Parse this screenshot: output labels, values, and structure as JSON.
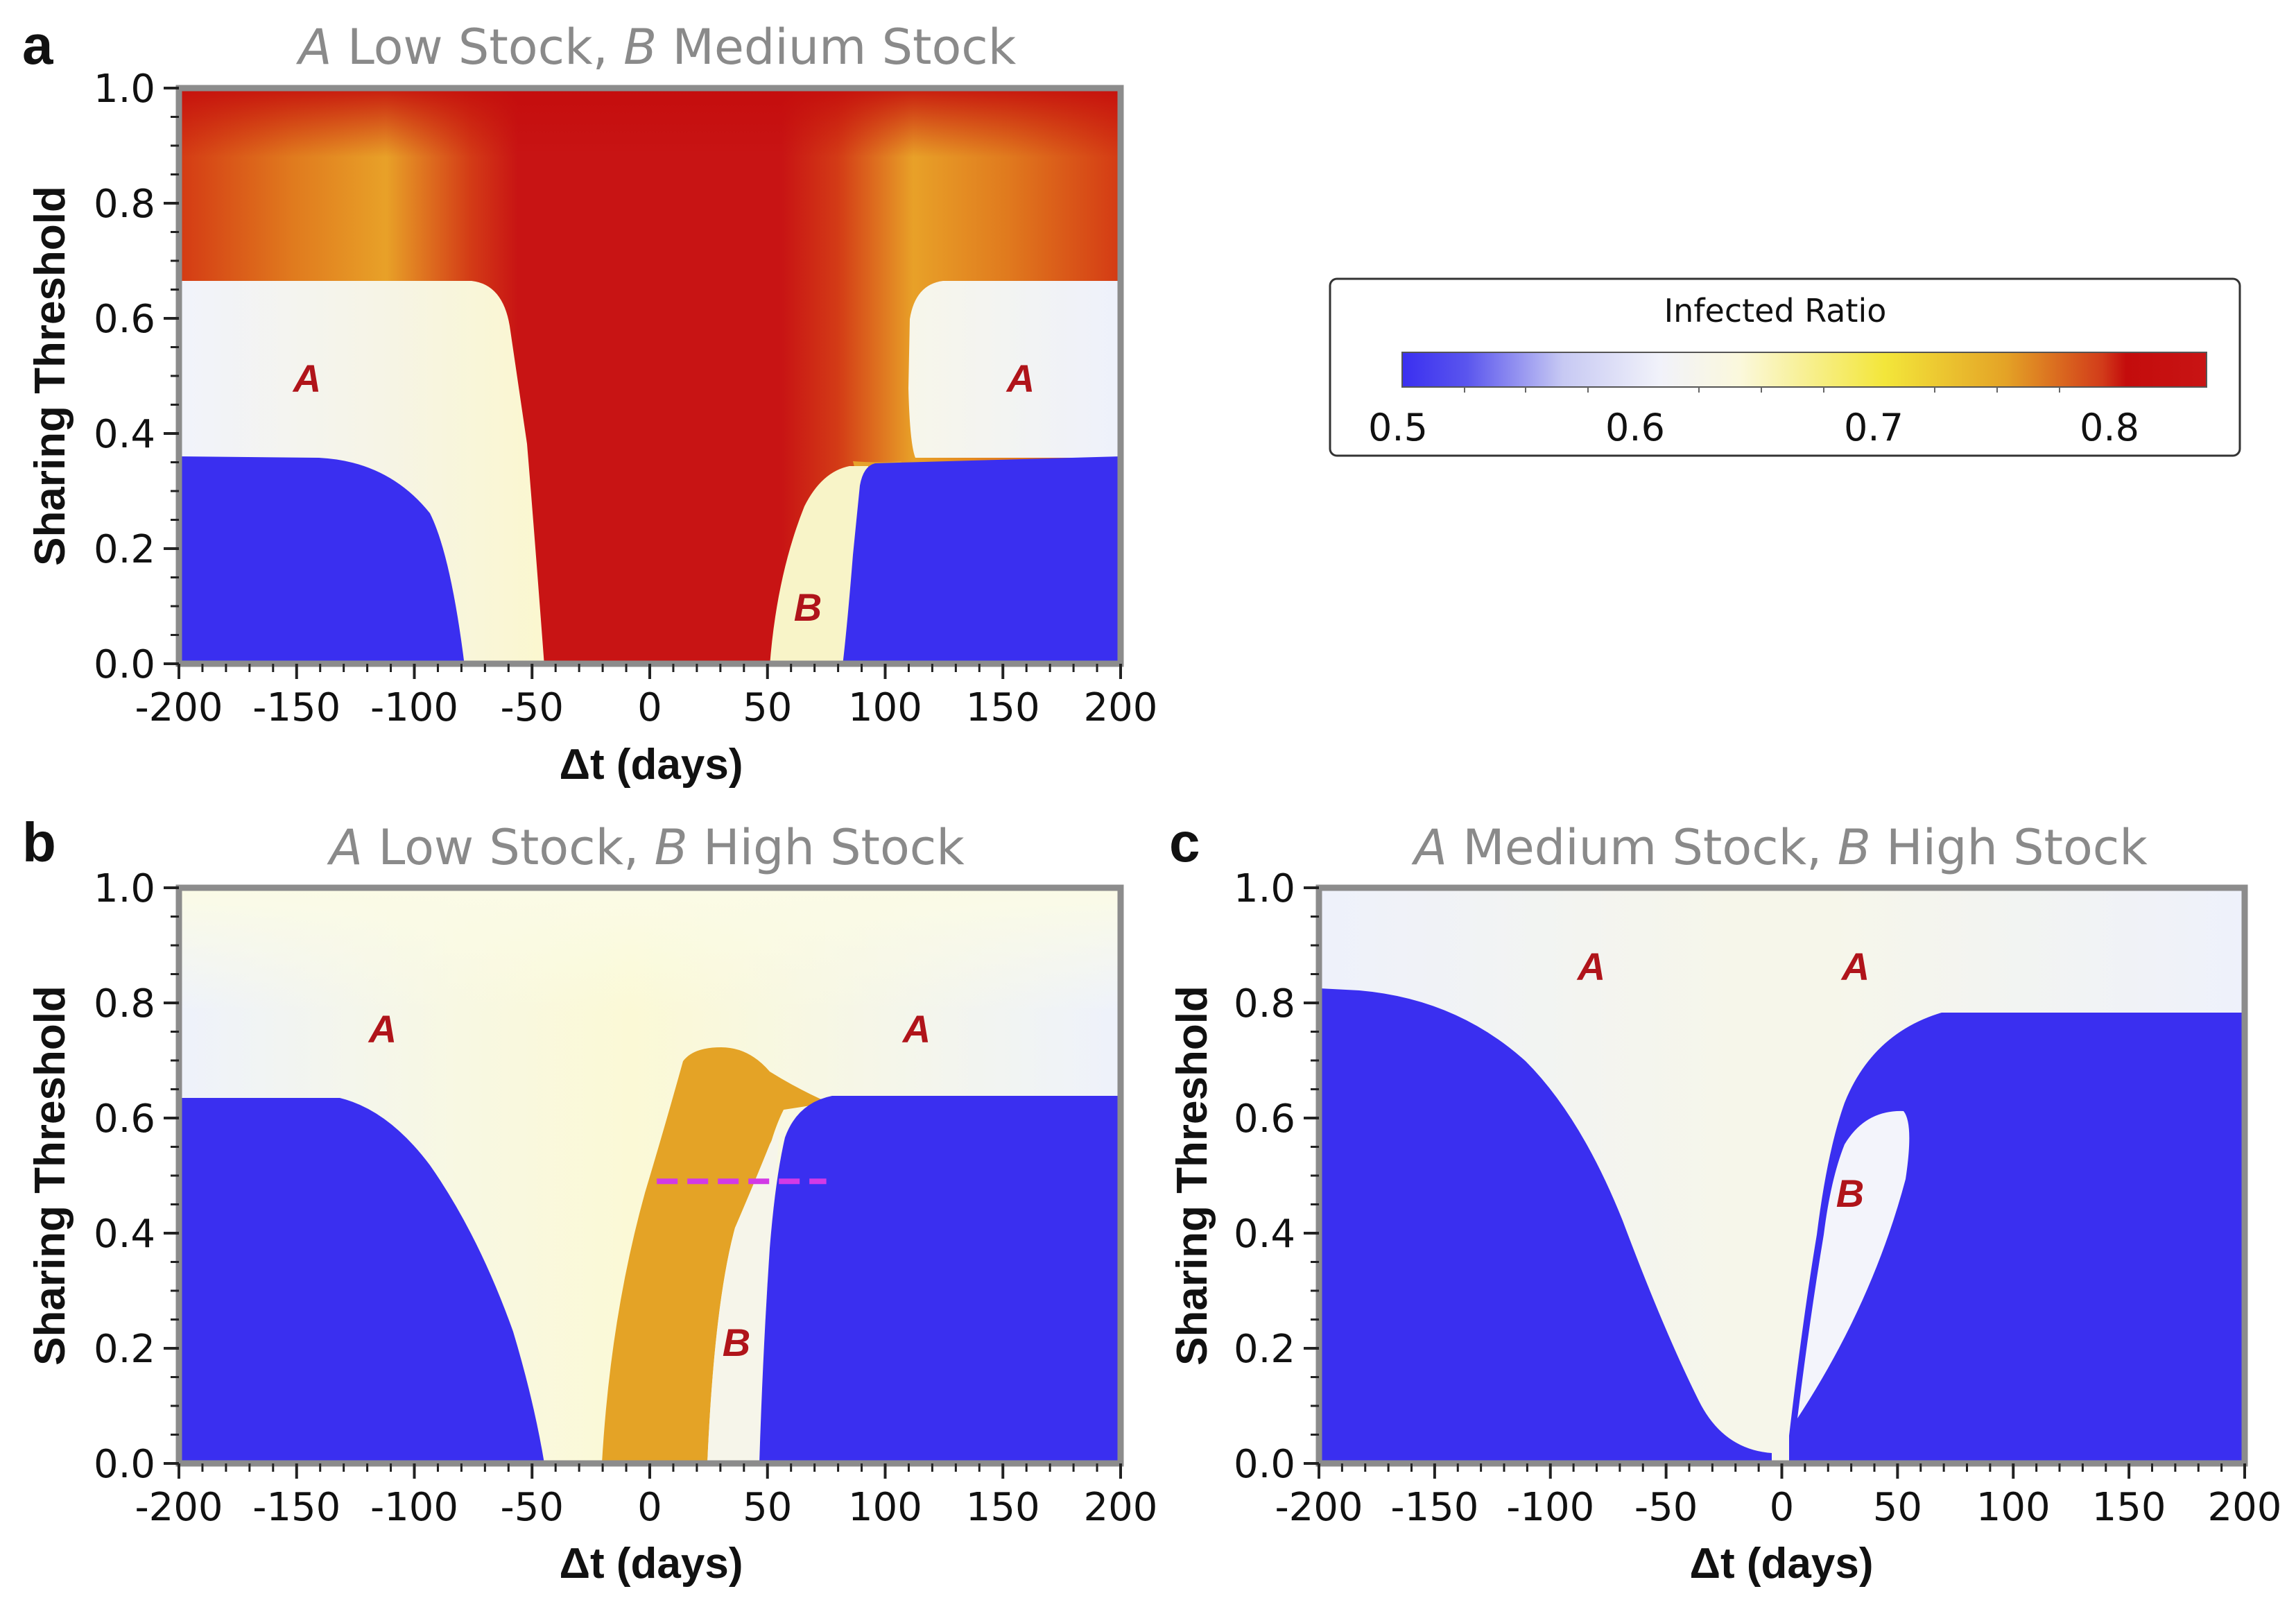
{
  "chart_data": [
    {
      "type": "heatmap",
      "panel": "a",
      "title_a_letter": "A",
      "title_a_text": " Low Stock, ",
      "title_b_letter": "B",
      "title_b_text": " Medium Stock",
      "xlabel": "Δt (days)",
      "ylabel": "Sharing Threshold",
      "xlim": [
        -200,
        200
      ],
      "ylim": [
        0.0,
        1.0
      ],
      "xticks": [
        "-200",
        "-150",
        "-100",
        "-50",
        "0",
        "50",
        "100",
        "150",
        "200"
      ],
      "yticks": [
        "0.0",
        "0.2",
        "0.4",
        "0.6",
        "0.8",
        "1.0"
      ],
      "annotations": [
        {
          "text": "A",
          "x": -145,
          "y": 0.49
        },
        {
          "text": "A",
          "x": 158,
          "y": 0.49
        },
        {
          "text": "B",
          "x": 68,
          "y": 0.09
        }
      ]
    },
    {
      "type": "heatmap",
      "panel": "b",
      "title_a_letter": "A",
      "title_a_text": " Low Stock, ",
      "title_b_letter": "B",
      "title_b_text": " High Stock",
      "xlabel": "Δt (days)",
      "ylabel": "Sharing Threshold",
      "xlim": [
        -200,
        200
      ],
      "ylim": [
        0.0,
        1.0
      ],
      "xticks": [
        "-200",
        "-150",
        "-100",
        "-50",
        "0",
        "50",
        "100",
        "150",
        "200"
      ],
      "yticks": [
        "0.0",
        "0.2",
        "0.4",
        "0.6",
        "0.8",
        "1.0"
      ],
      "dashed_line": {
        "x": [
          3,
          75
        ],
        "y": 0.49
      },
      "annotations": [
        {
          "text": "A",
          "x": -113,
          "y": 0.74
        },
        {
          "text": "A",
          "x": 113,
          "y": 0.74
        },
        {
          "text": "B",
          "x": 37,
          "y": 0.2
        }
      ]
    },
    {
      "type": "heatmap",
      "panel": "c",
      "title_a_letter": "A",
      "title_a_text": " Medium Stock, ",
      "title_b_letter": "B",
      "title_b_text": " High Stock",
      "xlabel": "Δt (days)",
      "ylabel": "Sharing Threshold",
      "xlim": [
        -200,
        200
      ],
      "ylim": [
        0.0,
        1.0
      ],
      "xticks": [
        "-200",
        "-150",
        "-100",
        "-50",
        "0",
        "50",
        "100",
        "150",
        "200"
      ],
      "yticks": [
        "0.0",
        "0.2",
        "0.4",
        "0.6",
        "0.8",
        "1.0"
      ],
      "annotations": [
        {
          "text": "A",
          "x": -82,
          "y": 0.85
        },
        {
          "text": "A",
          "x": 32,
          "y": 0.85
        },
        {
          "text": "B",
          "x": 30,
          "y": 0.45
        }
      ]
    }
  ],
  "legend": {
    "title": "Infected Ratio",
    "ticks": [
      "0.5",
      "0.6",
      "0.7",
      "0.8"
    ],
    "range": [
      0.5,
      0.84
    ]
  },
  "panel_letters": [
    "a",
    "b",
    "c"
  ],
  "colors": {
    "low": "#3a2ff0",
    "pale": "#f3f6fb",
    "cream": "#fbf9d8",
    "yellow": "#f3e63a",
    "orange": "#e4a326",
    "red": "#c81414",
    "deep_red": "#c40c0c",
    "label_red": "#b0141a",
    "dash_magenta": "#d23ae6",
    "frame": "#8c8c8c"
  }
}
